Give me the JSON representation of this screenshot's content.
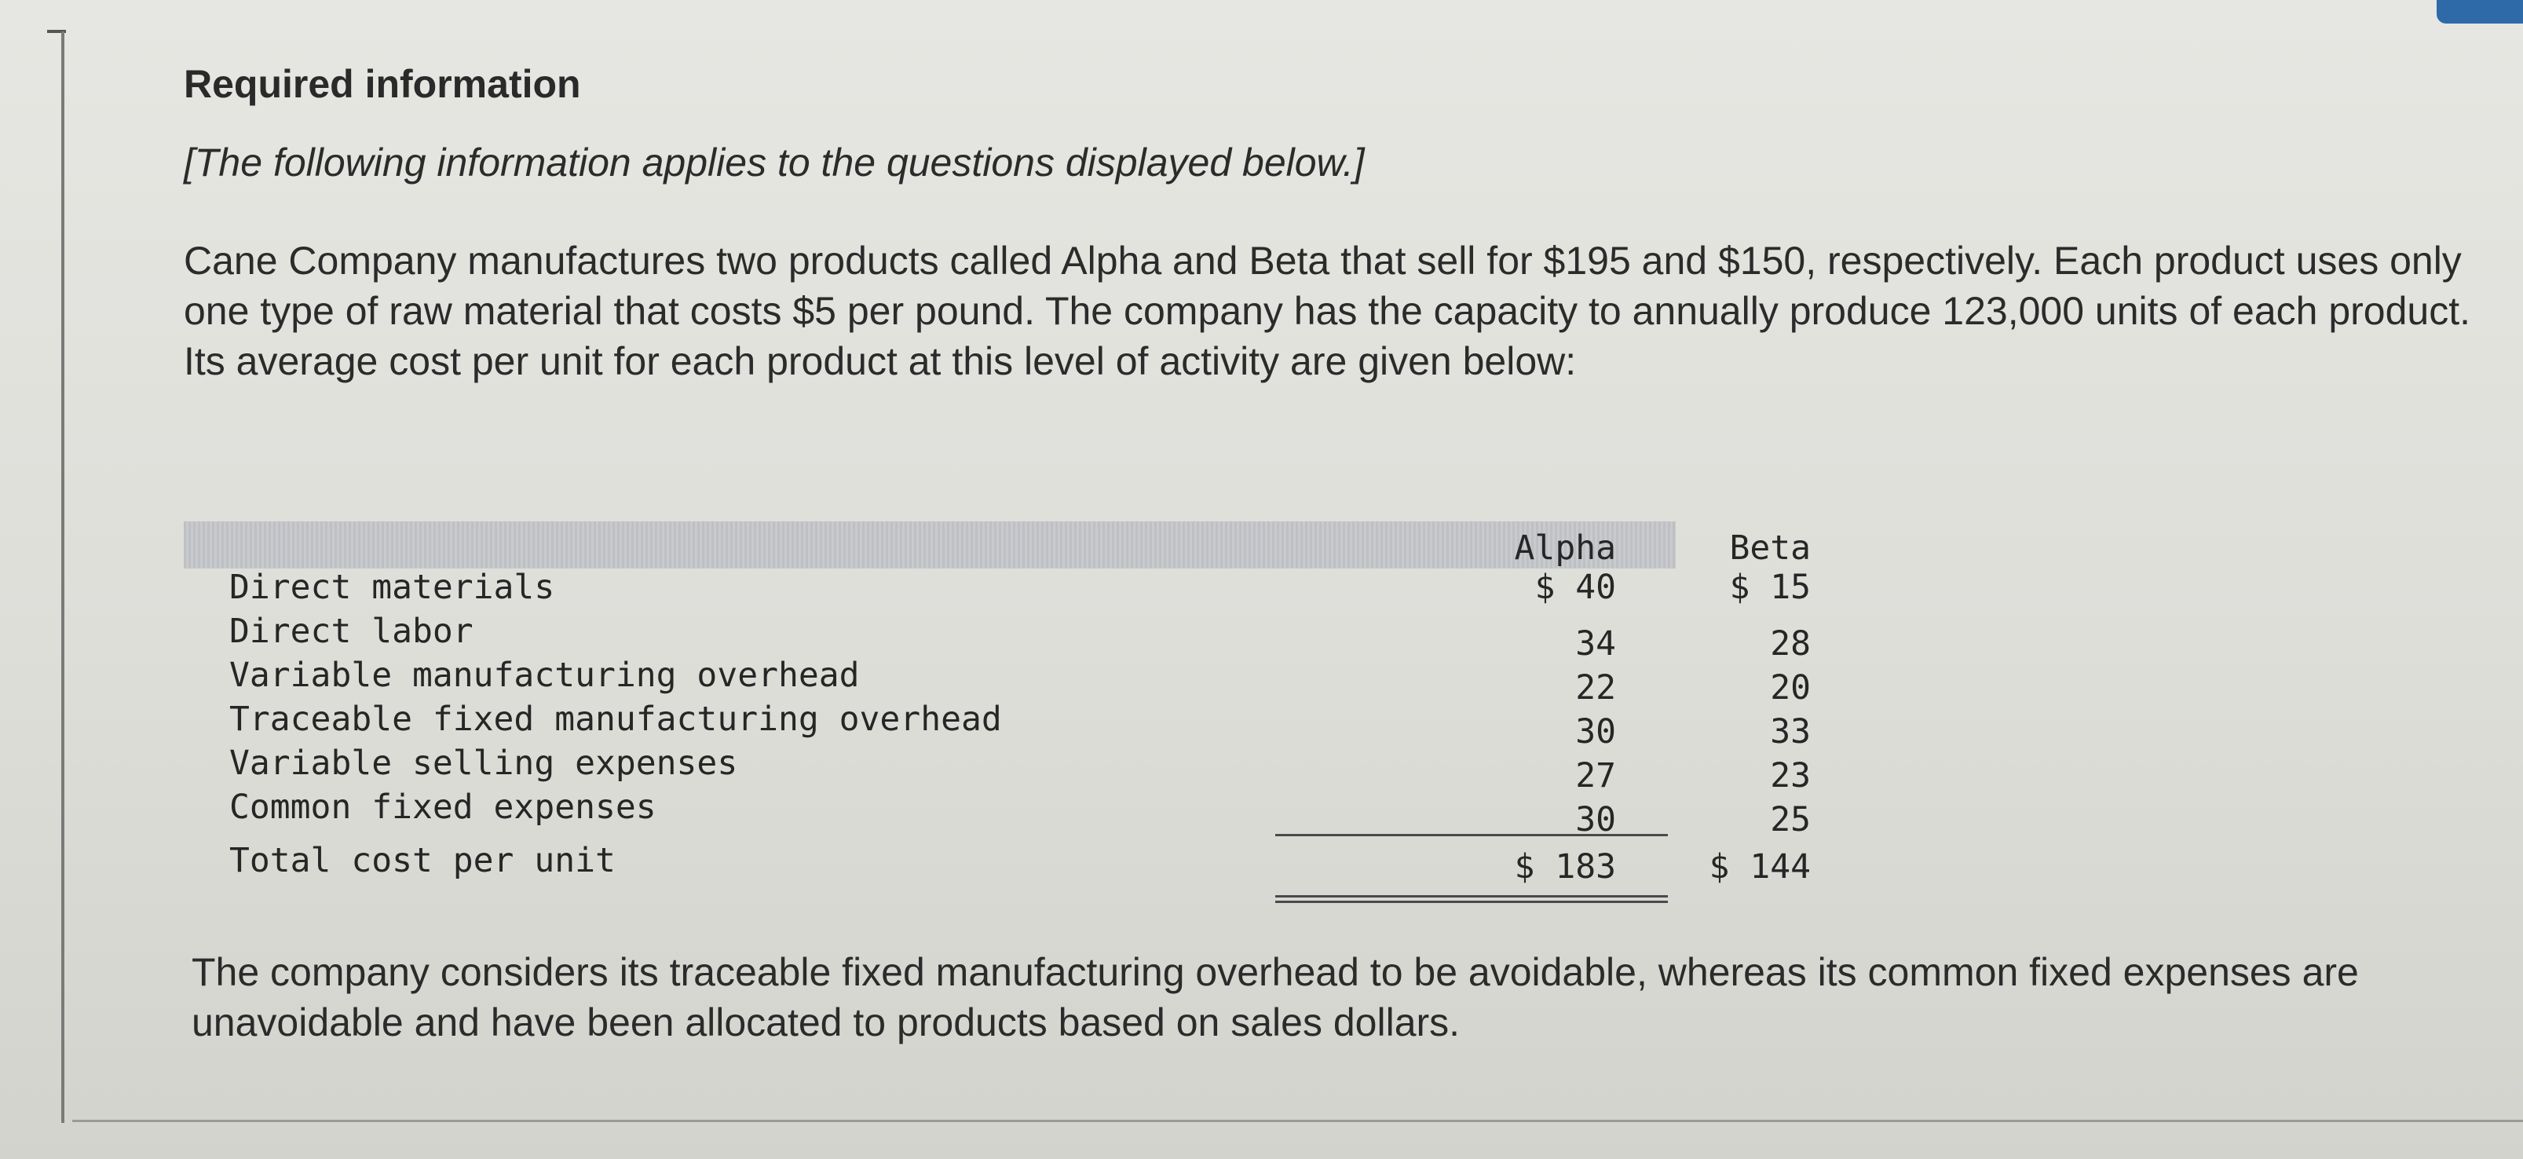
{
  "heading": "Required information",
  "intro": "[The following information applies to the questions displayed below.]",
  "description": "Cane Company manufactures two products called Alpha and Beta that sell for $195 and $150, respectively. Each product uses only one type of raw material that costs $5 per pound. The company has the capacity to annually produce 123,000 units of each product. Its average cost per unit for each product at this level of activity are given below:",
  "table": {
    "columns": [
      "Alpha",
      "Beta"
    ],
    "rows": [
      {
        "label": "Direct materials",
        "alpha": "$ 40",
        "beta": "$ 15"
      },
      {
        "label": "Direct labor",
        "alpha": "34",
        "beta": "28"
      },
      {
        "label": "Variable manufacturing overhead",
        "alpha": "22",
        "beta": "20"
      },
      {
        "label": "Traceable fixed manufacturing overhead",
        "alpha": "30",
        "beta": "33"
      },
      {
        "label": "Variable selling expenses",
        "alpha": "27",
        "beta": "23"
      },
      {
        "label": "Common fixed expenses",
        "alpha": "30",
        "beta": "25"
      }
    ],
    "total": {
      "label": "Total cost per unit",
      "alpha": "$ 183",
      "beta": "$ 144"
    }
  },
  "footer": "The company considers its traceable fixed manufacturing overhead to be avoidable, whereas its common fixed expenses are unavoidable and have been allocated to products based on sales dollars."
}
